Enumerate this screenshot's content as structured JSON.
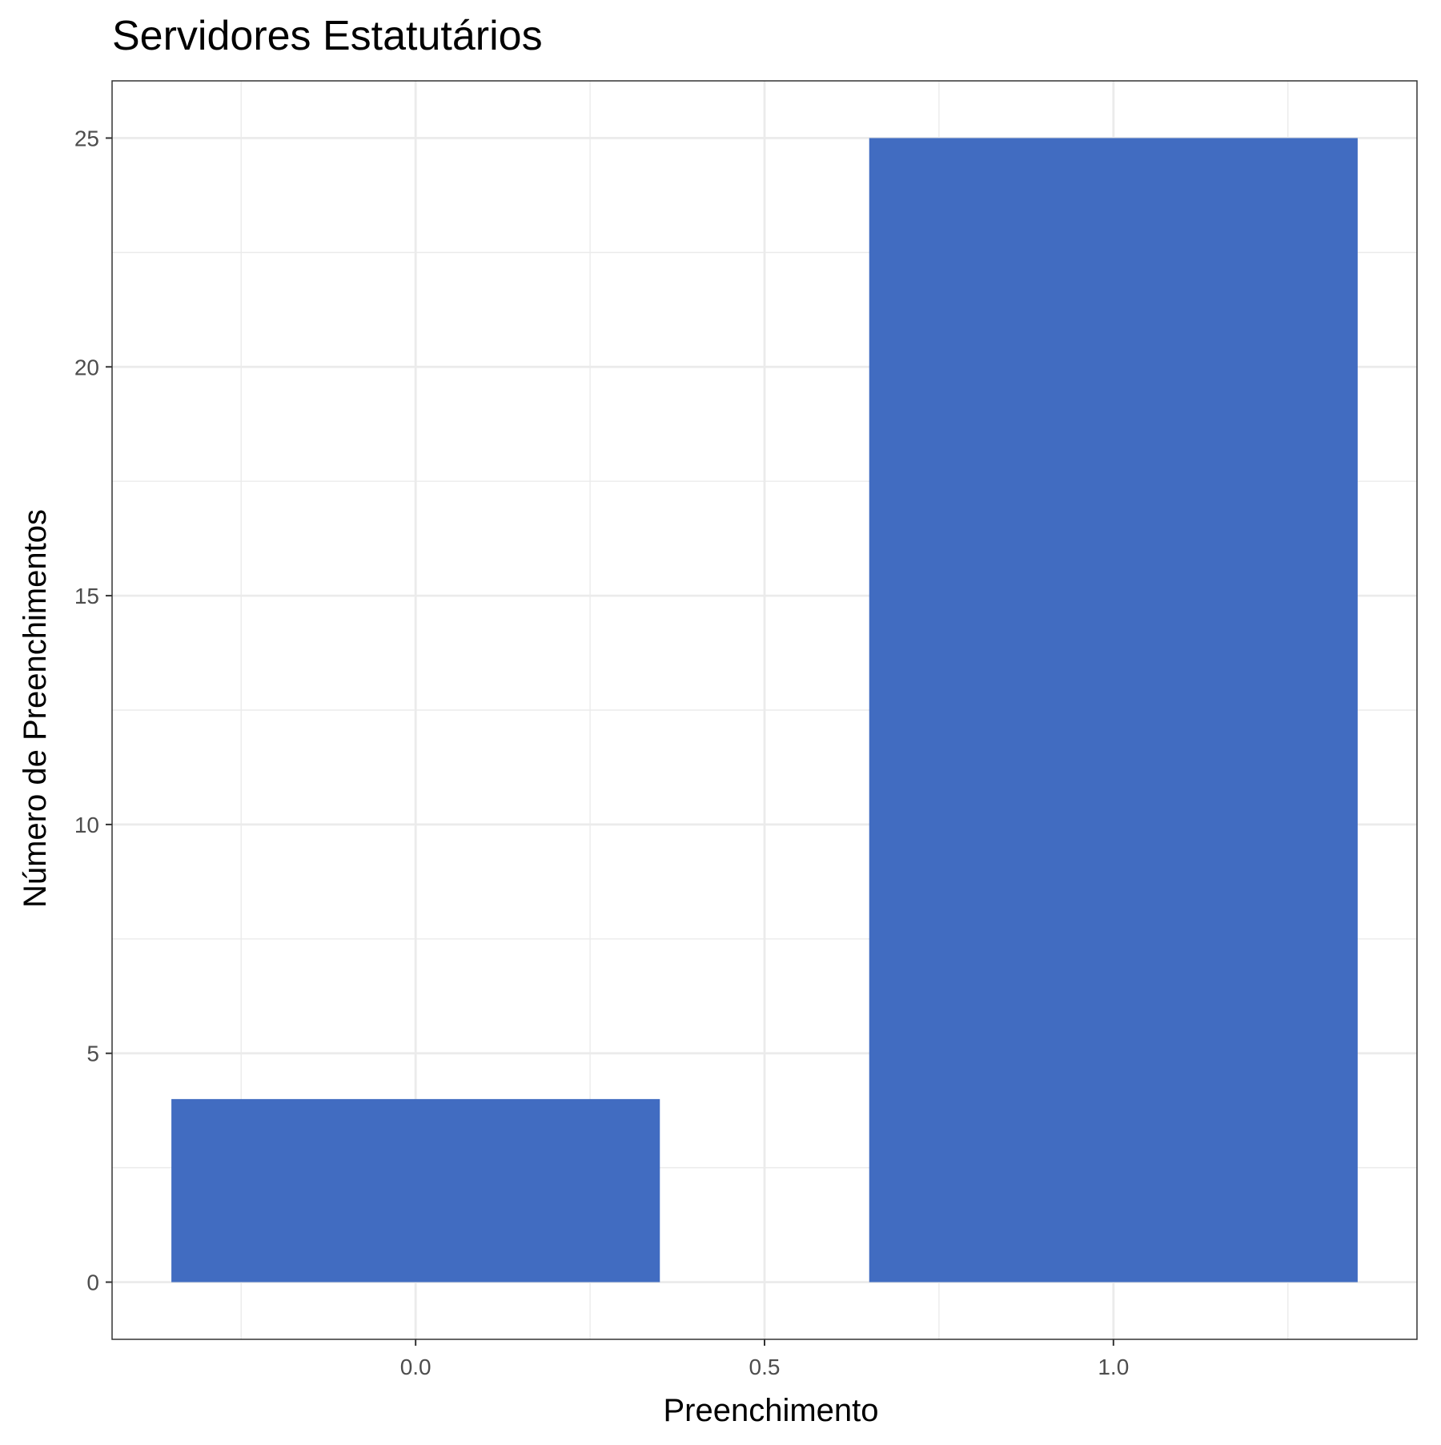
{
  "chart_data": {
    "type": "bar",
    "title": "Servidores Estatutários",
    "xlabel": "Preenchimento",
    "ylabel": "Número de Preenchimentos",
    "x": [
      0,
      1
    ],
    "values": [
      4,
      25
    ],
    "bar_width": 0.7,
    "xlim": [
      -0.435,
      1.435
    ],
    "ylim": [
      -1.25,
      26.25
    ],
    "xticks": [
      0.0,
      0.5,
      1.0
    ],
    "xtick_labels": [
      "0.0",
      "0.5",
      "1.0"
    ],
    "yticks": [
      0,
      5,
      10,
      15,
      20,
      25
    ],
    "ytick_labels": [
      "0",
      "5",
      "10",
      "15",
      "20",
      "25"
    ],
    "grid": true,
    "colors": {
      "bar": "#416CC1",
      "grid": "#EBEBEB",
      "panel_border": "#333333",
      "background": "#FFFFFF"
    }
  }
}
